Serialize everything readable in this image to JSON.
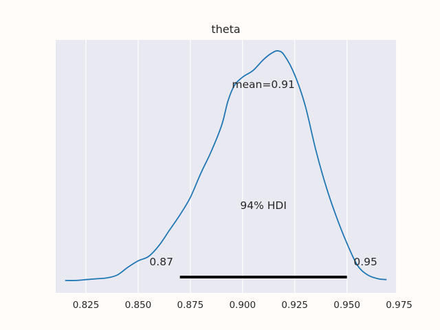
{
  "chart_data": {
    "type": "line",
    "title": "theta",
    "xlabel": "",
    "ylabel": "",
    "xlim": [
      0.8105,
      0.9735
    ],
    "ylim": [
      0,
      1.1
    ],
    "grid": true,
    "xticks": [
      0.825,
      0.85,
      0.875,
      0.9,
      0.925,
      0.95,
      0.975
    ],
    "xtick_labels": [
      "0.825",
      "0.850",
      "0.875",
      "0.900",
      "0.925",
      "0.950",
      "0.975"
    ],
    "series": [
      {
        "color": "#1f77b4",
        "x": [
          0.815,
          0.82,
          0.825,
          0.83,
          0.835,
          0.84,
          0.845,
          0.85,
          0.855,
          0.86,
          0.865,
          0.87,
          0.875,
          0.88,
          0.885,
          0.89,
          0.893,
          0.896,
          0.9,
          0.905,
          0.91,
          0.914,
          0.917,
          0.92,
          0.925,
          0.93,
          0.935,
          0.94,
          0.945,
          0.95,
          0.955,
          0.96,
          0.965,
          0.969
        ],
        "y": [
          0.0,
          0.0,
          0.004,
          0.008,
          0.012,
          0.025,
          0.06,
          0.09,
          0.11,
          0.16,
          0.23,
          0.3,
          0.38,
          0.49,
          0.59,
          0.71,
          0.82,
          0.89,
          0.93,
          0.96,
          1.01,
          1.04,
          1.05,
          1.03,
          0.94,
          0.8,
          0.6,
          0.43,
          0.29,
          0.17,
          0.07,
          0.025,
          0.008,
          0.004
        ]
      }
    ],
    "hdi": {
      "low": 0.87,
      "high": 0.95,
      "low_label": "0.87",
      "high_label": "0.95",
      "label": "94% HDI"
    },
    "mean": {
      "value": 0.91,
      "label": "mean=0.91"
    },
    "colors": {
      "plot_background": "#e9e9f2",
      "grid": "#ffffff",
      "line": "#1f77b4",
      "hdi_bar": "#000000"
    }
  }
}
